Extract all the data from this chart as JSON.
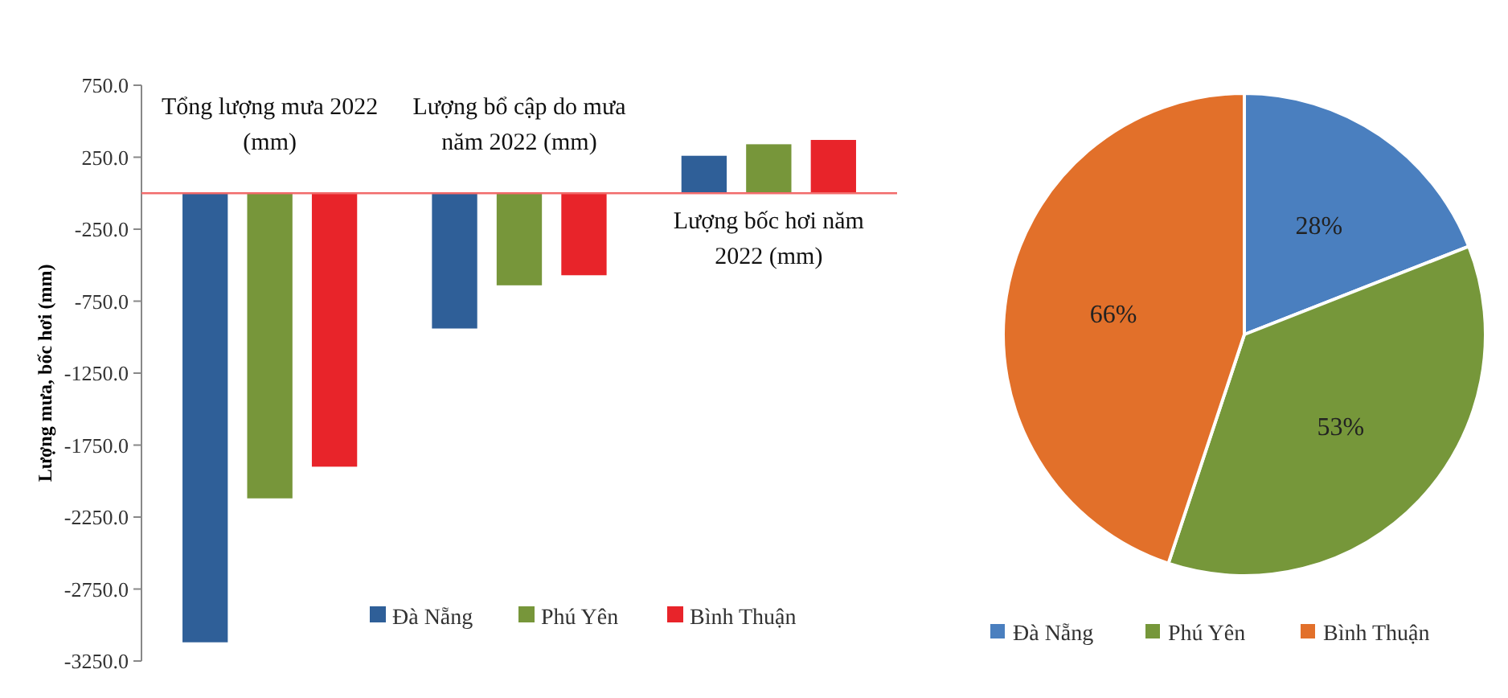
{
  "chart_data": [
    {
      "type": "bar",
      "ylabel": "Lượng mưa, bốc hơi (mm)",
      "categories": [
        "Tổng lượng mưa 2022 (mm)",
        "Lượng bổ cập do mưa năm 2022 (mm)",
        "Lượng bốc hơi năm 2022 (mm)"
      ],
      "series": [
        {
          "name": "Đà Nẵng",
          "color": "#2f5f98",
          "values": [
            -3120,
            -940,
            260
          ]
        },
        {
          "name": "Phú Yên",
          "color": "#77963a",
          "values": [
            -2120,
            -640,
            340
          ]
        },
        {
          "name": "Bình Thuận",
          "color": "#e8242a",
          "values": [
            -1900,
            -570,
            370
          ]
        }
      ],
      "ylim": [
        -3250,
        750
      ],
      "yticks": [
        {
          "value": 750,
          "label": "750.0"
        },
        {
          "value": 250,
          "label": "250.0"
        },
        {
          "value": -250,
          "label": "-250.0"
        },
        {
          "value": -750,
          "label": "-750.0"
        },
        {
          "value": -1250,
          "label": "-1250.0"
        },
        {
          "value": -1750,
          "label": "-1750.0"
        },
        {
          "value": -2250,
          "label": "-2250.0"
        },
        {
          "value": -2750,
          "label": "-2750.0"
        },
        {
          "value": -3250,
          "label": "-3250.0"
        }
      ],
      "grid": false,
      "legend": "bottom"
    },
    {
      "type": "pie",
      "categories": [
        "Đà Nẵng",
        "Phú Yên",
        "Bình Thuận"
      ],
      "values": [
        28,
        53,
        66
      ],
      "colors": [
        "#4a7fbf",
        "#76973a",
        "#e2702a"
      ],
      "value_labels": [
        "28%",
        "53%",
        "66%"
      ],
      "legend": "bottom"
    }
  ]
}
